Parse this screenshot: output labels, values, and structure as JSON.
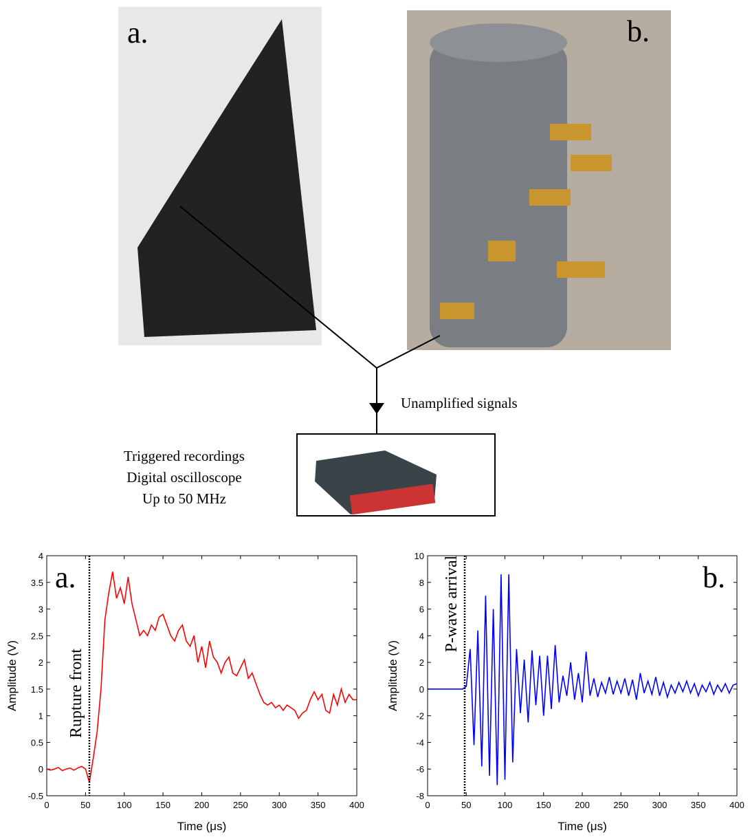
{
  "panels": {
    "left_label": "a.",
    "right_label": "b."
  },
  "diagram": {
    "signal_label": "Unamplified signals",
    "device_lines": [
      "Triggered recordings",
      "Digital oscilloscope",
      "Up to 50 MHz"
    ]
  },
  "chart_data": [
    {
      "type": "line",
      "panel_label": "a.",
      "xlabel": "Time (μs)",
      "ylabel": "Amplitude (V)",
      "color": "#ff0000",
      "annotations": [
        {
          "text": "Rupture front",
          "x": 55
        }
      ],
      "xlim": [
        0,
        400
      ],
      "xticks": [
        0,
        50,
        100,
        150,
        200,
        250,
        300,
        350,
        400
      ],
      "ylim": [
        -0.5,
        4
      ],
      "yticks": [
        -0.5,
        0,
        0.5,
        1,
        1.5,
        2,
        2.5,
        3,
        3.5,
        4
      ],
      "x": [
        0,
        5,
        10,
        15,
        20,
        25,
        30,
        35,
        40,
        45,
        50,
        55,
        60,
        65,
        70,
        75,
        80,
        85,
        90,
        95,
        100,
        105,
        110,
        115,
        120,
        125,
        130,
        135,
        140,
        145,
        150,
        155,
        160,
        165,
        170,
        175,
        180,
        185,
        190,
        195,
        200,
        205,
        210,
        215,
        220,
        225,
        230,
        235,
        240,
        245,
        250,
        255,
        260,
        265,
        270,
        275,
        280,
        285,
        290,
        295,
        300,
        305,
        310,
        315,
        320,
        325,
        330,
        335,
        340,
        345,
        350,
        355,
        360,
        365,
        370,
        375,
        380,
        385,
        390,
        395,
        400
      ],
      "values": [
        0,
        -0.02,
        0,
        0.03,
        -0.03,
        0,
        0.02,
        -0.02,
        0.02,
        0.05,
        0,
        -0.25,
        0.2,
        0.7,
        1.5,
        2.8,
        3.3,
        3.7,
        3.2,
        3.4,
        3.1,
        3.6,
        3.1,
        2.8,
        2.5,
        2.6,
        2.5,
        2.7,
        2.6,
        2.85,
        2.9,
        2.7,
        2.5,
        2.4,
        2.6,
        2.7,
        2.4,
        2.3,
        2.5,
        2.0,
        2.3,
        1.9,
        2.4,
        2.1,
        2.0,
        1.8,
        2.0,
        2.1,
        1.8,
        1.75,
        1.9,
        2.05,
        1.7,
        1.8,
        1.6,
        1.4,
        1.25,
        1.2,
        1.25,
        1.15,
        1.2,
        1.1,
        1.2,
        1.15,
        1.1,
        0.95,
        1.05,
        1.1,
        1.3,
        1.45,
        1.3,
        1.4,
        1.1,
        1.05,
        1.4,
        1.2,
        1.5,
        1.25,
        1.4,
        1.3,
        1.3
      ]
    },
    {
      "type": "line",
      "panel_label": "b.",
      "xlabel": "Time (μs)",
      "ylabel": "Amplitude (V)",
      "color": "#0000ff",
      "annotations": [
        {
          "text": "P-wave arrival",
          "x": 48
        }
      ],
      "xlim": [
        0,
        400
      ],
      "xticks": [
        0,
        50,
        100,
        150,
        200,
        250,
        300,
        350,
        400
      ],
      "ylim": [
        -8,
        10
      ],
      "yticks": [
        -8,
        -6,
        -4,
        -2,
        0,
        2,
        4,
        6,
        8,
        10
      ],
      "x": [
        0,
        5,
        10,
        15,
        20,
        25,
        30,
        35,
        40,
        45,
        50,
        55,
        60,
        65,
        70,
        75,
        80,
        85,
        90,
        95,
        100,
        105,
        110,
        115,
        120,
        125,
        130,
        135,
        140,
        145,
        150,
        155,
        160,
        165,
        170,
        175,
        180,
        185,
        190,
        195,
        200,
        205,
        210,
        215,
        220,
        225,
        230,
        235,
        240,
        245,
        250,
        255,
        260,
        265,
        270,
        275,
        280,
        285,
        290,
        295,
        300,
        305,
        310,
        315,
        320,
        325,
        330,
        335,
        340,
        345,
        350,
        355,
        360,
        365,
        370,
        375,
        380,
        385,
        390,
        395,
        400
      ],
      "values": [
        0,
        0,
        0,
        0,
        0,
        0,
        0,
        0,
        0,
        0,
        0.2,
        3,
        -4.2,
        4.4,
        -5.8,
        7,
        -6.5,
        6,
        -7.2,
        8.6,
        -6.8,
        8.6,
        -5.5,
        3,
        -1.8,
        2.2,
        -2.5,
        2.9,
        -1.2,
        2.5,
        -2,
        2.5,
        -1.5,
        3.3,
        -1,
        1,
        -0.5,
        2,
        -0.8,
        1.2,
        -1,
        2.8,
        -0.5,
        0.8,
        -0.6,
        0.5,
        -0.3,
        0.9,
        -0.4,
        0.6,
        -0.3,
        0.8,
        -0.5,
        0.7,
        -0.8,
        1.2,
        -0.3,
        0.6,
        -0.4,
        0.9,
        -0.5,
        0.5,
        -0.6,
        0.3,
        -0.3,
        0.5,
        -0.2,
        0.6,
        -0.3,
        0.4,
        -0.5,
        0.3,
        -0.2,
        0.5,
        -0.4,
        0.3,
        -0.2,
        0.4,
        -0.3,
        0.3,
        0.4
      ]
    }
  ]
}
